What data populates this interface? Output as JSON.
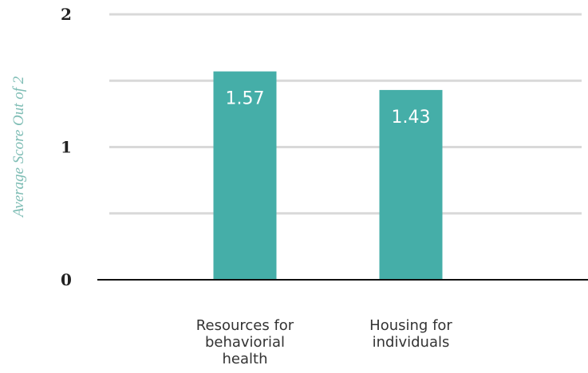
{
  "chart_data": {
    "type": "bar",
    "categories": [
      "Resources for behaviorial health",
      "Housing for individuals"
    ],
    "category_label_lines": [
      [
        "Resources for",
        "behaviorial",
        "health"
      ],
      [
        "Housing for",
        "individuals"
      ]
    ],
    "values": [
      1.57,
      1.43
    ],
    "data_labels": [
      "1.57",
      "1.43"
    ],
    "title": "",
    "xlabel": "",
    "ylabel": "Average Score Out of 2",
    "ylim": [
      0,
      2
    ],
    "y_ticks": [
      0,
      1,
      2
    ],
    "y_tick_labels": [
      "0",
      "1",
      "2"
    ],
    "minor_gridlines": [
      0.5,
      1.5
    ],
    "grid": true,
    "legend": "none",
    "colors": {
      "bar": "#45aea8",
      "grid": "#d9d9d9",
      "axis": "#111111",
      "ylabel": "#7fbdb5"
    }
  }
}
